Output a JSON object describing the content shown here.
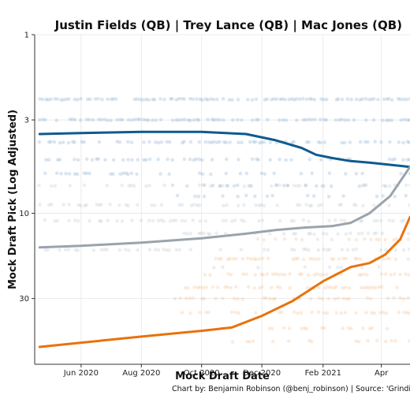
{
  "chart_data": {
    "type": "scatter",
    "title": "Justin Fields (QB)  |  Trey Lance (QB)  |  Mac Jones (QB)",
    "xlabel": "Mock Draft Date",
    "ylabel": "Mock Draft Pick (Log Adjusted)",
    "caption": "Chart by: Benjamin Robinson (@benj_robinson) | Source: 'Grinding the",
    "y_scale": "log",
    "y_reversed": true,
    "xlim": [
      "2020-04-15",
      "2021-04-30"
    ],
    "ylim": [
      1,
      70
    ],
    "x_ticks": [
      {
        "date": "2020-06-01",
        "label": "Jun 2020"
      },
      {
        "date": "2020-08-01",
        "label": "Aug 2020"
      },
      {
        "date": "2020-10-01",
        "label": "Oct 2020"
      },
      {
        "date": "2020-12-01",
        "label": "Dec 2020"
      },
      {
        "date": "2021-02-01",
        "label": "Feb 2021"
      },
      {
        "date": "2021-04-01",
        "label": "Apr"
      }
    ],
    "y_ticks": [
      {
        "value": 1,
        "label": "1"
      },
      {
        "value": 3,
        "label": "3"
      },
      {
        "value": 10,
        "label": "10"
      },
      {
        "value": 30,
        "label": "30"
      }
    ],
    "grid": true,
    "series": [
      {
        "name": "Justin Fields (QB)",
        "color": "#0e5a8f",
        "point_color": "#5b8fbf",
        "trend": [
          {
            "x": "2020-04-20",
            "y": 3.6
          },
          {
            "x": "2020-06-01",
            "y": 3.55
          },
          {
            "x": "2020-08-01",
            "y": 3.5
          },
          {
            "x": "2020-10-01",
            "y": 3.5
          },
          {
            "x": "2020-11-15",
            "y": 3.6
          },
          {
            "x": "2020-12-15",
            "y": 3.9
          },
          {
            "x": "2021-01-10",
            "y": 4.3
          },
          {
            "x": "2021-01-25",
            "y": 4.7
          },
          {
            "x": "2021-02-10",
            "y": 4.9
          },
          {
            "x": "2021-03-01",
            "y": 5.1
          },
          {
            "x": "2021-03-20",
            "y": 5.2
          },
          {
            "x": "2021-04-30",
            "y": 5.5
          }
        ],
        "rows": [
          {
            "y": 2.3,
            "from": "2020-04-20",
            "to": "2021-04-30",
            "density": 0.75
          },
          {
            "y": 3,
            "from": "2020-04-20",
            "to": "2021-04-30",
            "density": 0.65
          },
          {
            "y": 4,
            "from": "2020-04-20",
            "to": "2021-04-30",
            "density": 0.55
          },
          {
            "y": 5,
            "from": "2020-04-20",
            "to": "2021-04-30",
            "density": 0.45
          },
          {
            "y": 6,
            "from": "2020-04-20",
            "to": "2021-04-30",
            "density": 0.3
          },
          {
            "y": 7,
            "from": "2020-09-01",
            "to": "2021-04-30",
            "density": 0.2
          },
          {
            "y": 8,
            "from": "2020-09-01",
            "to": "2021-04-30",
            "density": 0.2
          }
        ]
      },
      {
        "name": "Trey Lance (QB)",
        "color": "#9aa3ad",
        "point_color": "#a9b0b8",
        "trend": [
          {
            "x": "2020-04-20",
            "y": 15.5
          },
          {
            "x": "2020-06-01",
            "y": 15.2
          },
          {
            "x": "2020-08-01",
            "y": 14.6
          },
          {
            "x": "2020-10-01",
            "y": 13.8
          },
          {
            "x": "2020-11-15",
            "y": 13.0
          },
          {
            "x": "2020-12-15",
            "y": 12.4
          },
          {
            "x": "2021-01-15",
            "y": 12.0
          },
          {
            "x": "2021-02-10",
            "y": 11.8
          },
          {
            "x": "2021-03-01",
            "y": 11.3
          },
          {
            "x": "2021-03-20",
            "y": 10.0
          },
          {
            "x": "2021-04-10",
            "y": 8.0
          },
          {
            "x": "2021-04-30",
            "y": 5.5
          }
        ],
        "rows": [
          {
            "y": 7,
            "from": "2020-04-20",
            "to": "2021-04-30",
            "density": 0.25
          },
          {
            "y": 9,
            "from": "2020-04-20",
            "to": "2021-04-30",
            "density": 0.4
          },
          {
            "y": 11,
            "from": "2020-04-20",
            "to": "2021-04-30",
            "density": 0.45
          },
          {
            "y": 13,
            "from": "2020-09-01",
            "to": "2021-04-30",
            "density": 0.4
          },
          {
            "y": 16,
            "from": "2020-04-20",
            "to": "2021-04-30",
            "density": 0.3
          },
          {
            "y": 20,
            "from": "2020-10-01",
            "to": "2021-04-30",
            "density": 0.2
          }
        ]
      },
      {
        "name": "Mac Jones (QB)",
        "color": "#e8720c",
        "point_color": "#f0a868",
        "trend": [
          {
            "x": "2020-04-20",
            "y": 56
          },
          {
            "x": "2020-06-01",
            "y": 53
          },
          {
            "x": "2020-08-01",
            "y": 49
          },
          {
            "x": "2020-10-01",
            "y": 45.5
          },
          {
            "x": "2020-11-01",
            "y": 43.5
          },
          {
            "x": "2020-12-01",
            "y": 37.5
          },
          {
            "x": "2021-01-01",
            "y": 31
          },
          {
            "x": "2021-02-01",
            "y": 24
          },
          {
            "x": "2021-03-01",
            "y": 20
          },
          {
            "x": "2021-03-20",
            "y": 19
          },
          {
            "x": "2021-04-05",
            "y": 17
          },
          {
            "x": "2021-04-20",
            "y": 14
          },
          {
            "x": "2021-04-30",
            "y": 10.5
          }
        ],
        "rows": [
          {
            "y": 14,
            "from": "2020-11-15",
            "to": "2021-04-30",
            "density": 0.3
          },
          {
            "y": 18,
            "from": "2020-10-15",
            "to": "2021-04-30",
            "density": 0.55
          },
          {
            "y": 22,
            "from": "2020-10-01",
            "to": "2021-04-30",
            "density": 0.55
          },
          {
            "y": 26,
            "from": "2020-09-15",
            "to": "2021-04-30",
            "density": 0.5
          },
          {
            "y": 30,
            "from": "2020-09-01",
            "to": "2021-04-30",
            "density": 0.45
          },
          {
            "y": 36,
            "from": "2020-08-15",
            "to": "2021-04-30",
            "density": 0.35
          },
          {
            "y": 44,
            "from": "2020-10-15",
            "to": "2021-04-30",
            "density": 0.3
          },
          {
            "y": 52,
            "from": "2020-11-01",
            "to": "2021-04-30",
            "density": 0.2
          }
        ]
      }
    ]
  }
}
